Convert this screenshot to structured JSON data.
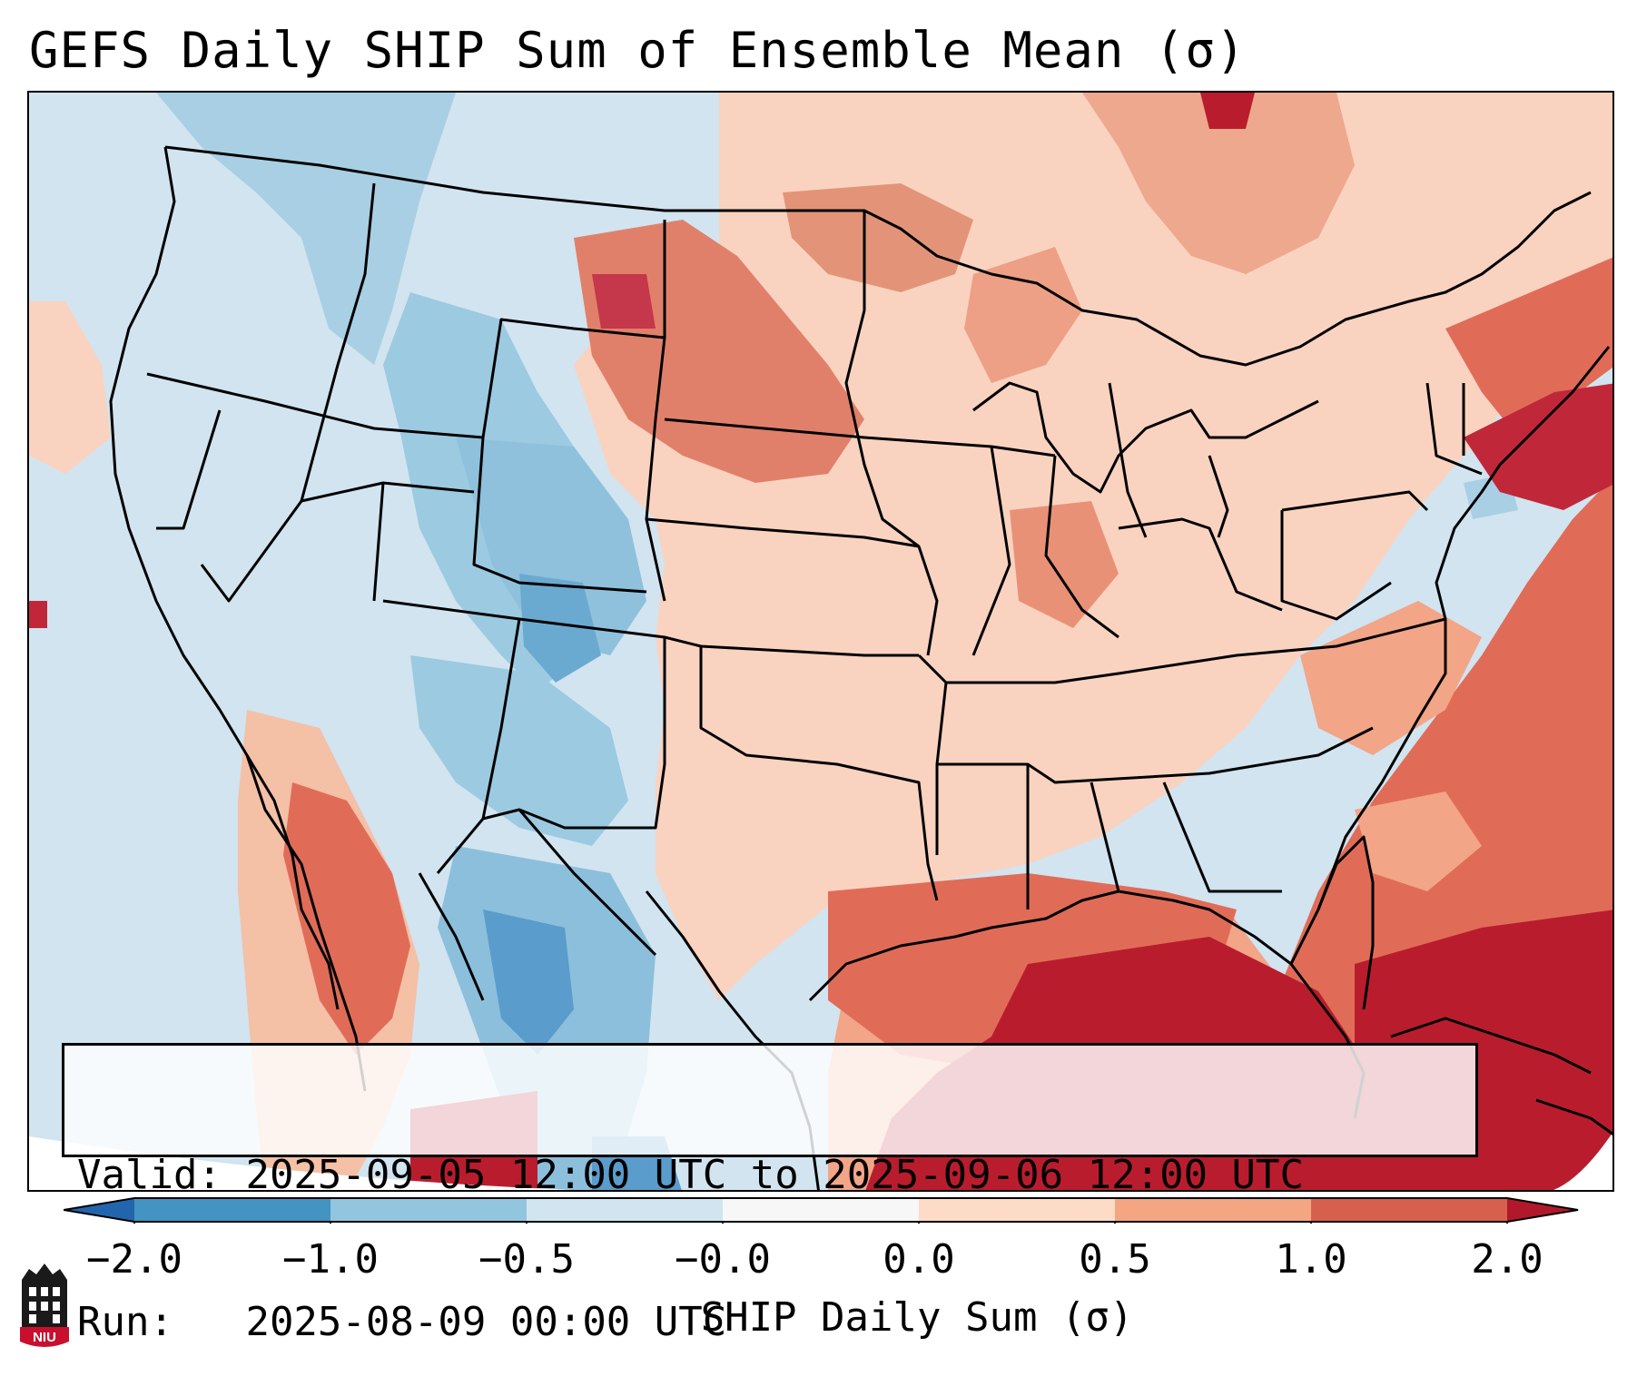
{
  "title": "GEFS Daily SHIP Sum of Ensemble Mean (σ)",
  "info": {
    "valid_label": "Valid:",
    "valid_value": "2025-09-05 12:00 UTC to 2025-09-06 12:00 UTC",
    "run_label": "Run:",
    "run_value": "2025-08-09 00:00 UTC"
  },
  "colorbar": {
    "label": "SHIP Daily Sum (σ)",
    "ticks": [
      "−2.0",
      "−1.0",
      "−0.5",
      "−0.0",
      "0.0",
      "0.5",
      "1.0",
      "2.0"
    ],
    "colors": {
      "under": "#2166ac",
      "neg2_neg1": "#4393c3",
      "neg1_neg05": "#92c5de",
      "neg05_0": "#d1e5f0",
      "zero": "#f7f7f7",
      "pos0_05": "#fddbc7",
      "pos05_1": "#f4a582",
      "pos1_2": "#d6604d",
      "over": "#b2182b"
    }
  },
  "logo": {
    "text": "NIU",
    "color": "#c8102e"
  }
}
